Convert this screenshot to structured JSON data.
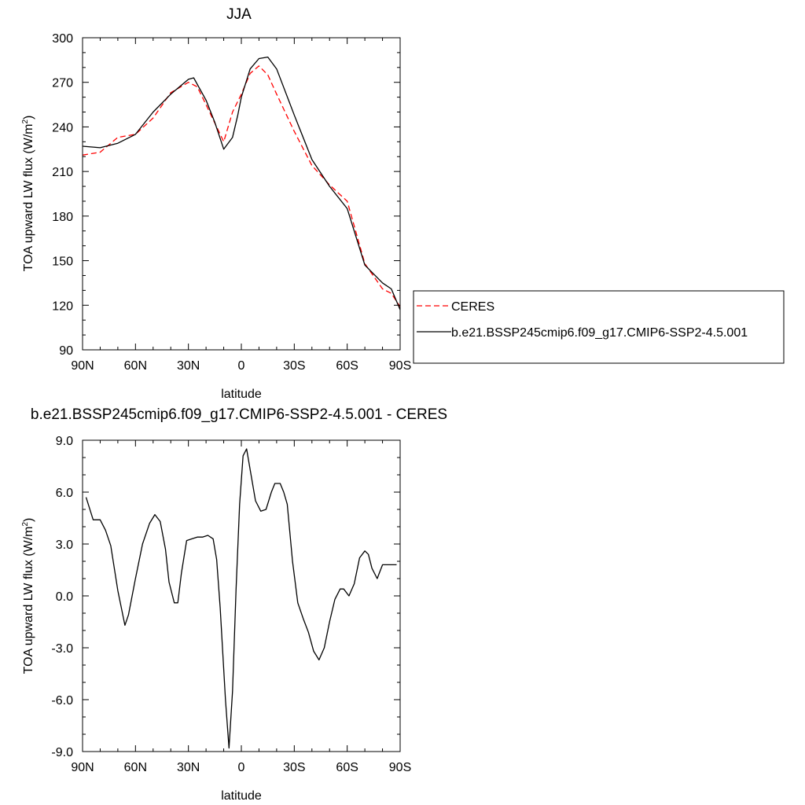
{
  "chart_data": [
    {
      "type": "line",
      "title": "JJA",
      "xlabel": "latitude",
      "ylabel_main": "TOA upward LW flux (W/m",
      "ylabel_sup": "2",
      "ylabel_close": ")",
      "xlim": [
        90,
        -90
      ],
      "ylim": [
        90,
        300
      ],
      "xticks": [
        {
          "value": 90,
          "label": "90N"
        },
        {
          "value": 60,
          "label": "60N"
        },
        {
          "value": 30,
          "label": "30N"
        },
        {
          "value": 0,
          "label": "0"
        },
        {
          "value": -30,
          "label": "30S"
        },
        {
          "value": -60,
          "label": "60S"
        },
        {
          "value": -90,
          "label": "90S"
        }
      ],
      "yticks": [
        {
          "value": 90,
          "label": "90"
        },
        {
          "value": 120,
          "label": "120"
        },
        {
          "value": 150,
          "label": "150"
        },
        {
          "value": 180,
          "label": "180"
        },
        {
          "value": 210,
          "label": "210"
        },
        {
          "value": 240,
          "label": "240"
        },
        {
          "value": 270,
          "label": "270"
        },
        {
          "value": 300,
          "label": "300"
        }
      ],
      "legend_placement": "right",
      "series": [
        {
          "name": "CERES",
          "color": "#ff0000",
          "dash": "dashed",
          "x": [
            90,
            80,
            70,
            60,
            50,
            40,
            30,
            25,
            20,
            10,
            5,
            0,
            -5,
            -10,
            -15,
            -20,
            -30,
            -40,
            -50,
            -60,
            -70,
            -80,
            -85,
            -90
          ],
          "y": [
            221,
            223,
            233,
            235,
            246,
            263,
            270,
            267,
            255,
            230,
            250,
            262,
            276,
            281,
            275,
            262,
            237,
            214,
            201,
            190,
            148,
            131,
            128,
            119
          ]
        },
        {
          "name": "b.e21.BSSP245cmip6.f09_g17.CMIP6-SSP2-4.5.001",
          "color": "#000000",
          "dash": "solid",
          "x": [
            90,
            80,
            70,
            60,
            50,
            40,
            30,
            27,
            20,
            15,
            10,
            5,
            2,
            0,
            -5,
            -10,
            -15,
            -20,
            -30,
            -40,
            -50,
            -60,
            -70,
            -80,
            -85,
            -90
          ],
          "y": [
            227,
            226,
            229,
            235,
            250,
            262,
            272,
            273,
            258,
            243,
            225,
            233,
            248,
            260,
            279,
            286,
            287,
            279,
            248,
            218,
            200,
            185,
            147,
            135,
            131,
            117
          ]
        }
      ]
    },
    {
      "type": "line",
      "title": "b.e21.BSSP245cmip6.f09_g17.CMIP6-SSP2-4.5.001 - CERES",
      "xlabel": "latitude",
      "ylabel_main": "TOA upward LW flux (W/m",
      "ylabel_sup": "2",
      "ylabel_close": ")",
      "xlim": [
        90,
        -90
      ],
      "ylim": [
        -9.0,
        9.0
      ],
      "xticks": [
        {
          "value": 90,
          "label": "90N"
        },
        {
          "value": 60,
          "label": "60N"
        },
        {
          "value": 30,
          "label": "30N"
        },
        {
          "value": 0,
          "label": "0"
        },
        {
          "value": -30,
          "label": "30S"
        },
        {
          "value": -60,
          "label": "60S"
        },
        {
          "value": -90,
          "label": "90S"
        }
      ],
      "yticks": [
        {
          "value": -9,
          "label": "-9.0"
        },
        {
          "value": -6,
          "label": "-6.0"
        },
        {
          "value": -3,
          "label": "-3.0"
        },
        {
          "value": 0,
          "label": "0.0"
        },
        {
          "value": 3,
          "label": "3.0"
        },
        {
          "value": 6,
          "label": "6.0"
        },
        {
          "value": 9,
          "label": "9.0"
        }
      ],
      "series": [
        {
          "color": "#000000",
          "dash": "solid",
          "x": [
            88,
            84,
            80,
            77,
            74,
            70,
            66,
            64,
            60,
            56,
            52,
            49,
            46,
            43,
            41,
            38,
            36,
            34,
            31,
            28,
            25,
            22,
            19,
            16,
            14,
            12,
            9,
            7,
            5,
            3,
            1,
            -1,
            -3,
            -5,
            -8,
            -11,
            -14,
            -17,
            -19,
            -22,
            -24,
            -26,
            -29,
            -32,
            -35,
            -38,
            -41,
            -44,
            -47,
            -50,
            -53,
            -56,
            -58,
            -61,
            -64,
            -67,
            -70,
            -72,
            -74,
            -77,
            -80,
            -83,
            -86,
            -88
          ],
          "y": [
            5.7,
            4.4,
            4.4,
            3.8,
            2.9,
            0.3,
            -1.7,
            -1.1,
            1.0,
            3.0,
            4.2,
            4.7,
            4.3,
            2.7,
            0.8,
            -0.4,
            -0.4,
            1.3,
            3.2,
            3.3,
            3.4,
            3.4,
            3.5,
            3.3,
            2.1,
            -0.7,
            -6.0,
            -8.8,
            -5.5,
            0.4,
            5.3,
            8.1,
            8.5,
            7.3,
            5.5,
            4.9,
            5.0,
            6.0,
            6.5,
            6.5,
            6.0,
            5.3,
            2.0,
            -0.4,
            -1.3,
            -2.1,
            -3.2,
            -3.7,
            -3.0,
            -1.5,
            -0.2,
            0.4,
            0.4,
            0.0,
            0.7,
            2.2,
            2.6,
            2.4,
            1.6,
            1.0,
            1.8,
            1.8,
            1.8,
            1.8
          ]
        }
      ]
    }
  ]
}
